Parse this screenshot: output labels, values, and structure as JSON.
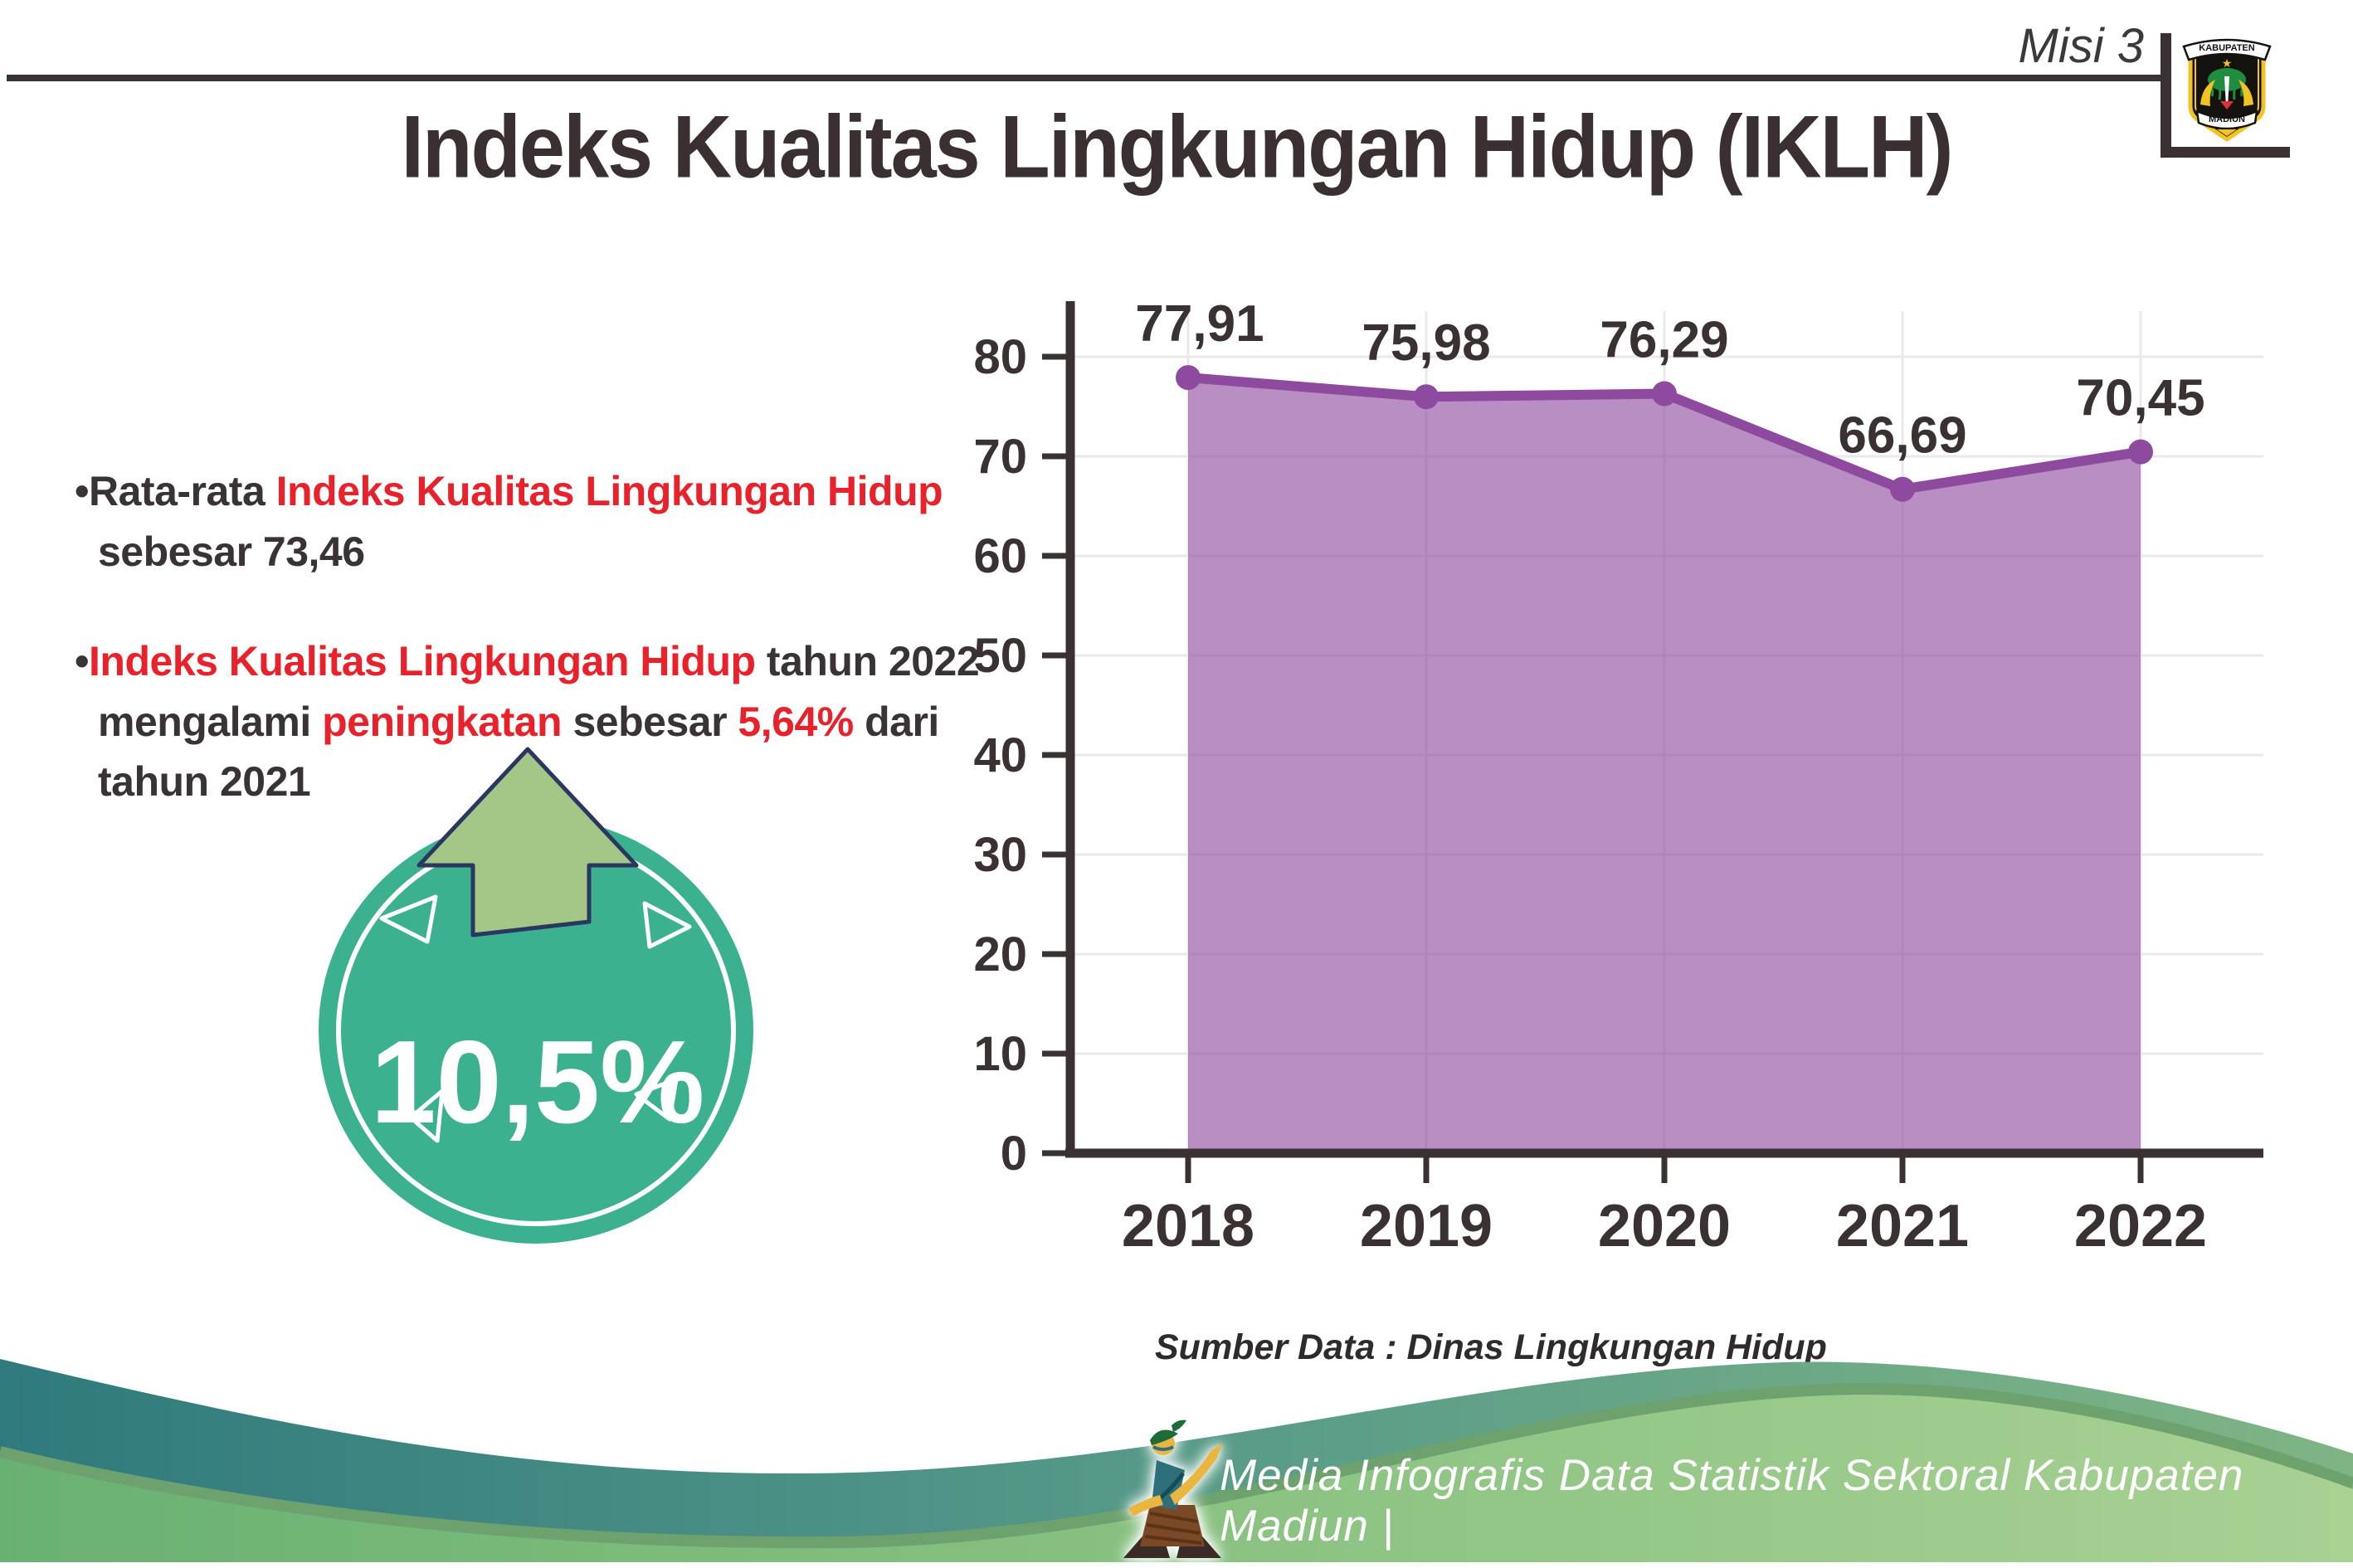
{
  "header": {
    "misi_label": "Misi 3",
    "logo": {
      "top_text": "KABUPATEN",
      "bottom_text": "MADIUN"
    }
  },
  "title": "Indeks Kualitas Lingkungan Hidup (IKLH)",
  "bullets": [
    {
      "segments": [
        {
          "text": "•Rata-rata ",
          "color": "dark"
        },
        {
          "text": "Indeks Kualitas Lingkungan Hidup",
          "color": "red"
        },
        {
          "text": " sebesar 73,46",
          "color": "dark"
        }
      ]
    },
    {
      "segments": [
        {
          "text": "•",
          "color": "dark"
        },
        {
          "text": "Indeks Kualitas Lingkungan Hidup",
          "color": "red"
        },
        {
          "text": " tahun 2022 mengalami ",
          "color": "dark"
        },
        {
          "text": "peningkatan",
          "color": "red"
        },
        {
          "text": " sebesar ",
          "color": "dark"
        },
        {
          "text": "5,64%",
          "color": "red"
        },
        {
          "text": " dari tahun 2021",
          "color": "dark"
        }
      ]
    }
  ],
  "badge": {
    "value": "10,5%",
    "circle_color": "#3bb190",
    "arrow_color": "#a2c787",
    "arrow_outline": "#2a3760"
  },
  "chart_data": {
    "type": "area",
    "categories": [
      "2018",
      "2019",
      "2020",
      "2021",
      "2022"
    ],
    "values": [
      77.91,
      75.98,
      76.29,
      66.69,
      70.45
    ],
    "value_labels": [
      "77,91",
      "75,98",
      "76,29",
      "66,69",
      "70,45"
    ],
    "yticks": [
      0,
      10,
      20,
      30,
      40,
      50,
      60,
      70,
      80
    ],
    "ylim": [
      0,
      85
    ],
    "grid": true,
    "legend": "none",
    "line_color": "#8e4a9e",
    "fill_color": "#8e4a9e",
    "title": "Indeks Kualitas Lingkungan Hidup (IKLH)",
    "xlabel": "",
    "ylabel": "",
    "source": "Sumber Data : Dinas Lingkungan Hidup"
  },
  "source_note": "Sumber Data : Dinas Lingkungan Hidup",
  "footer": {
    "text": "Media Infografis Data Statistik Sektoral Kabupaten Madiun |"
  }
}
